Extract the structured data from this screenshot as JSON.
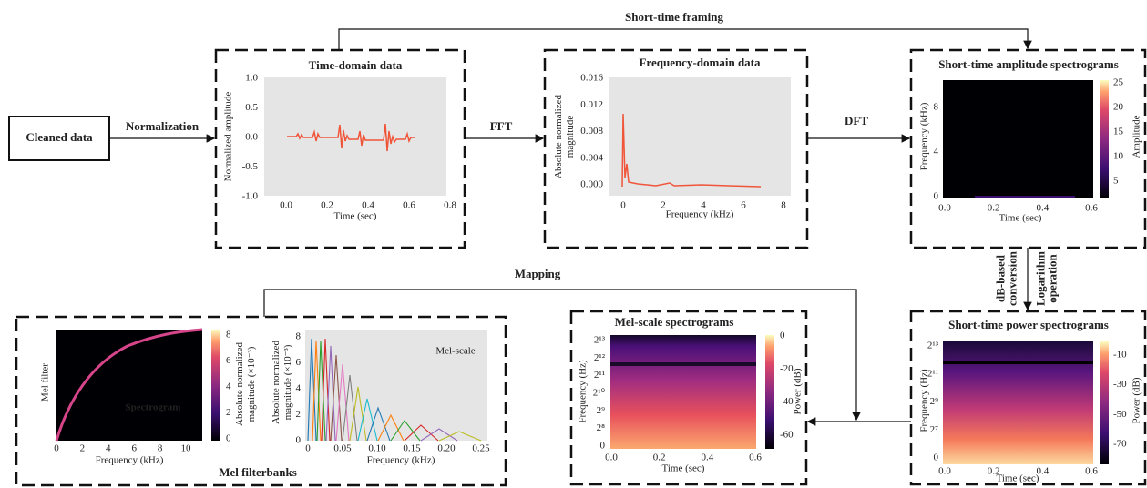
{
  "nodes": {
    "cleaned": {
      "label": "Cleaned data"
    },
    "time_domain": {
      "title": "Time-domain data",
      "y_label": "Normalized amplitude",
      "x_label": "Time (sec)",
      "yticks": [
        "1.0",
        "0.5",
        "0.0",
        "-0.5",
        "-1.0"
      ],
      "xticks": [
        "0.0",
        "0.2",
        "0.4",
        "0.6",
        "0.8"
      ]
    },
    "freq_domain": {
      "title": "Frequency-domain data",
      "y_label": [
        "Absolute normalized",
        "magnitude"
      ],
      "x_label": "Frequency (kHz)",
      "yticks": [
        "0.016",
        "0.012",
        "0.008",
        "0.004",
        "0.000"
      ],
      "xticks": [
        "0",
        "2",
        "4",
        "6",
        "8"
      ]
    },
    "amplitude_spec": {
      "title": "Short-time amplitude spectrograms",
      "y_label": "Frequency (kHz)",
      "x_label": "Time (sec)",
      "yticks": [
        "8",
        "4",
        "0"
      ],
      "xticks": [
        "0.0",
        "0.2",
        "0.4",
        "0.6"
      ],
      "colorbar_label": "Amplitude",
      "colorbar_ticks": [
        "25",
        "20",
        "15",
        "10",
        "5"
      ]
    },
    "power_spec": {
      "title": "Short-time power spectrograms",
      "y_label": "Frequency (Hz)",
      "x_label": "Time (sec)",
      "yticks": [
        "2¹³",
        "2¹¹",
        "2⁹",
        "2⁷",
        "0"
      ],
      "xticks": [
        "0.0",
        "0.2",
        "0.4",
        "0.6"
      ],
      "colorbar_label": "Power (dB)",
      "colorbar_ticks": [
        "-10",
        "-30",
        "-50",
        "-70"
      ]
    },
    "mel_spec": {
      "title": "Mel-scale spectrograms",
      "y_label": "Frequency (Hz)",
      "x_label": "Time (sec)",
      "yticks": [
        "2¹³",
        "2¹²",
        "2¹¹",
        "2¹⁰",
        "2⁹",
        "2⁸",
        "0"
      ],
      "xticks": [
        "0.0",
        "0.2",
        "0.4",
        "0.6"
      ],
      "colorbar_label": "Power (dB)",
      "colorbar_ticks": [
        "0",
        "-20",
        "-40",
        "-60"
      ]
    },
    "mel_filterbanks": {
      "title": "Mel filterbanks",
      "left": {
        "y_label": "Mel filter",
        "x_label": "Frequency (kHz)",
        "xticks": [
          "0",
          "2",
          "4",
          "6",
          "8",
          "10"
        ],
        "annotation": "Spectrogram",
        "colorbar_label": [
          "Absolute normalized",
          "magnitude (×10⁻³)"
        ],
        "colorbar_ticks": [
          "8",
          "6",
          "4",
          "2",
          "0"
        ]
      },
      "right": {
        "y_label": [
          "Absolute normalized",
          "magnitude (×10⁻³)"
        ],
        "x_label": "Frequency (kHz)",
        "annotation": "Mel-scale",
        "yticks": [
          "8",
          "6",
          "4",
          "2",
          "0"
        ],
        "xticks": [
          "0",
          "0.05",
          "0.10",
          "0.15",
          "0.20",
          "0.25"
        ]
      }
    }
  },
  "edges": {
    "normalization": "Normalization",
    "fft": "FFT",
    "dft": "DFT",
    "framing": "Short-time framing",
    "db": [
      "dB-based",
      "conversion"
    ],
    "log": [
      "Logarithm",
      "operation"
    ],
    "mapping": "Mapping"
  }
}
